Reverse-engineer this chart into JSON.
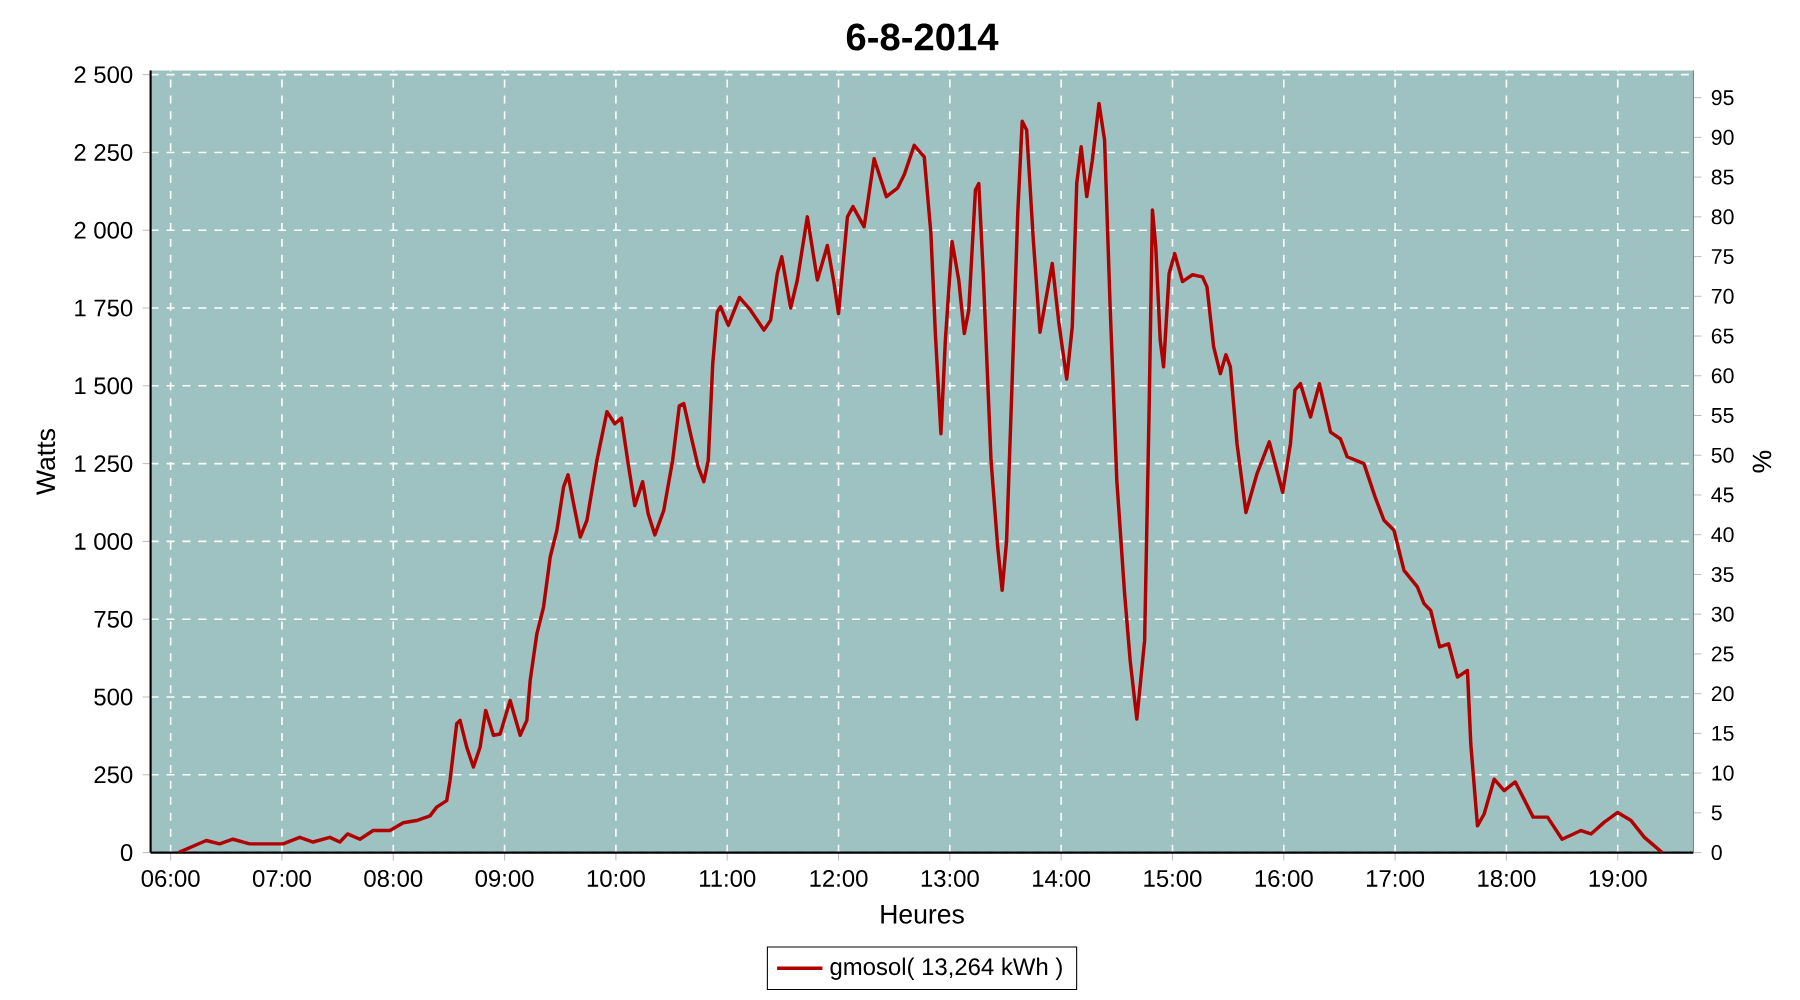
{
  "chart_data": {
    "type": "line",
    "title": "6-8-2014",
    "xlabel": "Heures",
    "ylabel": "Watts",
    "y2label": "%",
    "xlim": [
      5.82,
      19.68
    ],
    "xticks": [
      {
        "value": 6,
        "label": "06:00"
      },
      {
        "value": 7,
        "label": "07:00"
      },
      {
        "value": 8,
        "label": "08:00"
      },
      {
        "value": 9,
        "label": "09:00"
      },
      {
        "value": 10,
        "label": "10:00"
      },
      {
        "value": 11,
        "label": "11:00"
      },
      {
        "value": 12,
        "label": "12:00"
      },
      {
        "value": 13,
        "label": "13:00"
      },
      {
        "value": 14,
        "label": "14:00"
      },
      {
        "value": 15,
        "label": "15:00"
      },
      {
        "value": 16,
        "label": "16:00"
      },
      {
        "value": 17,
        "label": "17:00"
      },
      {
        "value": 18,
        "label": "18:00"
      },
      {
        "value": 19,
        "label": "19:00"
      }
    ],
    "ylim": [
      0,
      2513
    ],
    "yticks": [
      0,
      250,
      500,
      750,
      {
        "value": 1000,
        "label": "1 000"
      },
      {
        "value": 1250,
        "label": "1 250"
      },
      {
        "value": 1500,
        "label": "1 500"
      },
      {
        "value": 1750,
        "label": "1 750"
      },
      {
        "value": 2000,
        "label": "2 000"
      },
      {
        "value": 2250,
        "label": "2 250"
      },
      {
        "value": 2500,
        "label": "2 500"
      }
    ],
    "y2lim": [
      0,
      98.4
    ],
    "y2ticks": [
      0,
      5,
      10,
      15,
      20,
      25,
      30,
      35,
      40,
      45,
      50,
      55,
      60,
      65,
      70,
      75,
      80,
      85,
      90,
      95
    ],
    "grid": true,
    "legend": "bottom",
    "marker": "none",
    "line_style": "solid",
    "series": [
      {
        "name": "gmosol( 13,264 kWh )",
        "color": "#b00000",
        "x": [
          6.07,
          6.32,
          6.44,
          6.56,
          6.71,
          7.01,
          7.16,
          7.28,
          7.43,
          7.52,
          7.59,
          7.7,
          7.82,
          7.97,
          8.09,
          8.21,
          8.33,
          8.39,
          8.48,
          8.51,
          8.57,
          8.6,
          8.66,
          8.72,
          8.78,
          8.83,
          8.9,
          8.96,
          9.05,
          9.14,
          9.2,
          9.23,
          9.29,
          9.35,
          9.41,
          9.47,
          9.53,
          9.57,
          9.62,
          9.68,
          9.74,
          9.83,
          9.92,
          9.99,
          10.05,
          10.11,
          10.17,
          10.24,
          10.29,
          10.35,
          10.43,
          10.51,
          10.57,
          10.61,
          10.67,
          10.74,
          10.79,
          10.83,
          10.87,
          10.91,
          10.94,
          11.01,
          11.11,
          11.21,
          11.33,
          11.39,
          11.45,
          11.49,
          11.57,
          11.63,
          11.72,
          11.81,
          11.9,
          11.96,
          12.0,
          12.08,
          12.13,
          12.23,
          12.32,
          12.43,
          12.53,
          12.59,
          12.68,
          12.77,
          12.83,
          12.87,
          12.92,
          12.96,
          13.02,
          13.08,
          13.13,
          13.17,
          13.23,
          13.26,
          13.3,
          13.37,
          13.43,
          13.47,
          13.51,
          13.56,
          13.61,
          13.65,
          13.69,
          13.75,
          13.81,
          13.92,
          13.98,
          14.05,
          14.1,
          14.14,
          14.18,
          14.23,
          14.28,
          14.34,
          14.39,
          14.44,
          14.5,
          14.57,
          14.62,
          14.68,
          14.75,
          14.79,
          14.82,
          14.85,
          14.89,
          14.92,
          14.97,
          15.02,
          15.09,
          15.18,
          15.27,
          15.31,
          15.37,
          15.43,
          15.48,
          15.52,
          15.58,
          15.66,
          15.76,
          15.87,
          15.99,
          16.06,
          16.1,
          16.15,
          16.24,
          16.32,
          16.42,
          16.51,
          16.57,
          16.72,
          16.82,
          16.9,
          16.99,
          17.08,
          17.2,
          17.26,
          17.32,
          17.4,
          17.48,
          17.56,
          17.65,
          17.68,
          17.74,
          17.8,
          17.89,
          17.98,
          18.08,
          18.24,
          18.37,
          18.5,
          18.67,
          18.76,
          18.88,
          19.0,
          19.12,
          19.24,
          19.4
        ],
        "values": [
          0,
          39,
          28,
          43,
          28,
          28,
          49,
          34,
          49,
          34,
          60,
          43,
          71,
          71,
          96,
          103,
          118,
          146,
          167,
          232,
          414,
          425,
          339,
          275,
          339,
          457,
          377,
          381,
          489,
          377,
          425,
          553,
          703,
          789,
          950,
          1036,
          1175,
          1214,
          1121,
          1014,
          1068,
          1261,
          1417,
          1378,
          1396,
          1250,
          1115,
          1192,
          1089,
          1021,
          1100,
          1261,
          1436,
          1443,
          1346,
          1239,
          1192,
          1261,
          1571,
          1737,
          1754,
          1694,
          1784,
          1743,
          1679,
          1711,
          1861,
          1915,
          1750,
          1840,
          2043,
          1840,
          1951,
          1829,
          1732,
          2043,
          2076,
          2011,
          2230,
          2108,
          2135,
          2178,
          2273,
          2236,
          1989,
          1668,
          1346,
          1647,
          1964,
          1840,
          1668,
          1743,
          2129,
          2150,
          1861,
          1261,
          982,
          843,
          1003,
          1518,
          2054,
          2350,
          2322,
          1968,
          1672,
          1893,
          1700,
          1522,
          1690,
          2150,
          2268,
          2108,
          2225,
          2407,
          2290,
          1754,
          1196,
          832,
          617,
          429,
          682,
          1421,
          2065,
          1947,
          1647,
          1561,
          1861,
          1925,
          1835,
          1857,
          1850,
          1818,
          1625,
          1539,
          1600,
          1561,
          1314,
          1093,
          1218,
          1320,
          1158,
          1314,
          1486,
          1507,
          1400,
          1507,
          1351,
          1329,
          1272,
          1250,
          1143,
          1068,
          1036,
          907,
          854,
          800,
          778,
          661,
          671,
          564,
          585,
          349,
          86,
          124,
          236,
          199,
          227,
          114,
          114,
          43,
          71,
          60,
          98,
          129,
          103,
          49,
          0
        ]
      }
    ]
  }
}
